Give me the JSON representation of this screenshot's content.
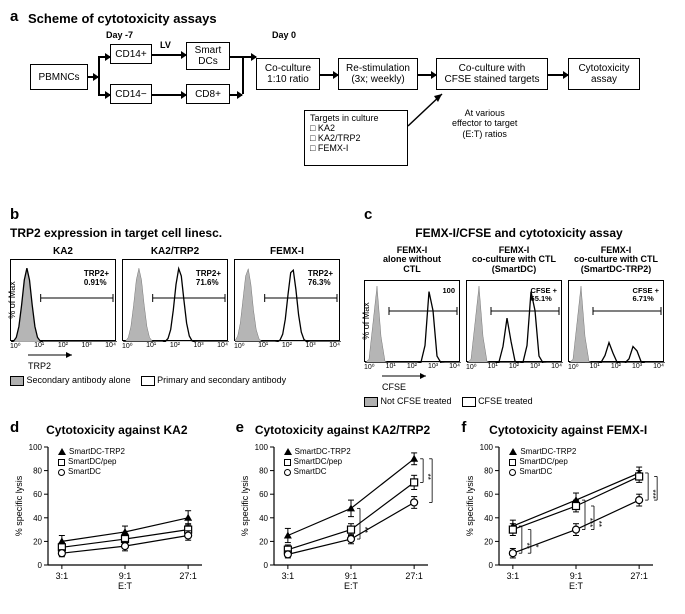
{
  "panelA": {
    "label": "a",
    "title": "Scheme of cytotoxicity assays",
    "day_minus7": "Day -7",
    "day0": "Day 0",
    "boxes": {
      "pbmnc": "PBMNCs",
      "cd14p": "CD14+",
      "cd14n": "CD14−",
      "lv": "LV",
      "smartdc": "Smart\nDCs",
      "cd8": "CD8+",
      "coculture": "Co-culture\n1:10 ratio",
      "restim": "Re-stimulation\n(3x; weekly)",
      "cfse": "Co-culture with\nCFSE stained targets",
      "cyto": "Cytotoxicity\nassay"
    },
    "targets_title": "Targets in culture",
    "targets_items": [
      "□ KA2",
      "□ KA2/TRP2",
      "□ FEMX-I"
    ],
    "et_note": "At various\neffector to target\n(E:T) ratios"
  },
  "panelB": {
    "label": "b",
    "title": "TRP2 expression in target cell linesc.",
    "x_axis": "TRP2",
    "y_axis": "% of Max",
    "plots": [
      {
        "name": "KA2",
        "gate": "TRP2+\n0.91%",
        "peak_x": 0.15,
        "shift": 0.0
      },
      {
        "name": "KA2/TRP2",
        "gate": "TRP2+\n71.6%",
        "peak_x": 0.15,
        "shift": 0.38
      },
      {
        "name": "FEMX-I",
        "gate": "TRP2+\n76.3%",
        "peak_x": 0.12,
        "shift": 0.42
      }
    ],
    "legend_filled": "Secondary antibody alone",
    "legend_open": "Primary and secondary antibody",
    "xticks": [
      "10⁰",
      "10¹",
      "10²",
      "10³",
      "10⁴"
    ]
  },
  "panelC": {
    "label": "c",
    "title": "FEMX-I/CFSE and cytotoxicity assay",
    "x_axis": "CFSE",
    "y_axis": "% of Max",
    "plots": [
      {
        "name": "FEMX-I\nalone without\nCTL",
        "gate": "100",
        "peak1": 0.12,
        "peak2": 0.68,
        "p2h": 0.95
      },
      {
        "name": "FEMX-I\nco-culture with CTL\n(SmartDC)",
        "gate": "CFSE +\n65.1%",
        "peak1": 0.12,
        "peak2": 0.42,
        "peak3": 0.68,
        "p2h": 0.55,
        "p3h": 0.95
      },
      {
        "name": "FEMX-I\nco-culture with CTL\n(SmartDC-TRP2)",
        "gate": "CFSE +\n6.71%",
        "peak1": 0.12,
        "peak2": 0.42,
        "peak3": 0.68,
        "p2h": 0.25,
        "p3h": 0.22
      }
    ],
    "legend_filled": "Not CFSE treated",
    "legend_open": "CFSE treated",
    "xticks": [
      "10⁰",
      "10¹",
      "10²",
      "10³",
      "10⁴"
    ]
  },
  "lineCharts": {
    "y_label": "% specific lysis",
    "x_label": "E:T",
    "y_lim": [
      0,
      100
    ],
    "y_ticks": [
      0,
      20,
      40,
      60,
      80,
      100
    ],
    "x_categories": [
      "3:1",
      "9:1",
      "27:1"
    ],
    "series_labels": {
      "trp2": "SmartDC-TRP2",
      "pep": "SmartDC/pep",
      "base": "SmartDC"
    },
    "panels": [
      {
        "label": "d",
        "title": "Cytotoxicity against KA2",
        "series": {
          "trp2": {
            "y": [
              20,
              28,
              40
            ],
            "err": [
              5,
              5,
              6
            ],
            "marker": "triangle"
          },
          "pep": {
            "y": [
              15,
              22,
              30
            ],
            "err": [
              4,
              4,
              5
            ],
            "marker": "square"
          },
          "base": {
            "y": [
              10,
              16,
              25
            ],
            "err": [
              3,
              4,
              4
            ],
            "marker": "circle"
          }
        },
        "sig": []
      },
      {
        "label": "e",
        "title": "Cytotoxicity against KA2/TRP2",
        "series": {
          "trp2": {
            "y": [
              25,
              48,
              90
            ],
            "err": [
              6,
              7,
              5
            ],
            "marker": "triangle"
          },
          "pep": {
            "y": [
              13,
              30,
              70
            ],
            "err": [
              4,
              5,
              6
            ],
            "marker": "square"
          },
          "base": {
            "y": [
              9,
              22,
              53
            ],
            "err": [
              3,
              4,
              5
            ],
            "marker": "circle"
          }
        },
        "sig": [
          {
            "x": 1,
            "pairs": [
              [
                "trp2",
                "base",
                "**"
              ]
            ]
          },
          {
            "x": 2,
            "pairs": [
              [
                "trp2",
                "pep",
                "**"
              ],
              [
                "trp2",
                "base",
                "***"
              ]
            ]
          }
        ]
      },
      {
        "label": "f",
        "title": "Cytotoxicity against FEMX-I",
        "series": {
          "trp2": {
            "y": [
              33,
              55,
              78
            ],
            "err": [
              5,
              6,
              5
            ],
            "marker": "triangle"
          },
          "pep": {
            "y": [
              30,
              50,
              75
            ],
            "err": [
              5,
              5,
              5
            ],
            "marker": "square"
          },
          "base": {
            "y": [
              10,
              30,
              55
            ],
            "err": [
              4,
              5,
              5
            ],
            "marker": "circle"
          }
        },
        "sig": [
          {
            "x": 0,
            "pairs": [
              [
                "trp2",
                "base",
                "**"
              ],
              [
                "pep",
                "base",
                "*"
              ]
            ]
          },
          {
            "x": 1,
            "pairs": [
              [
                "trp2",
                "base",
                "***"
              ],
              [
                "pep",
                "base",
                "**"
              ]
            ]
          },
          {
            "x": 2,
            "pairs": [
              [
                "trp2",
                "base",
                "***"
              ],
              [
                "pep",
                "base",
                "***"
              ]
            ]
          }
        ]
      }
    ]
  },
  "colors": {
    "line": "#000000",
    "fill_gray": "#b5b5b5",
    "axis": "#000000"
  }
}
